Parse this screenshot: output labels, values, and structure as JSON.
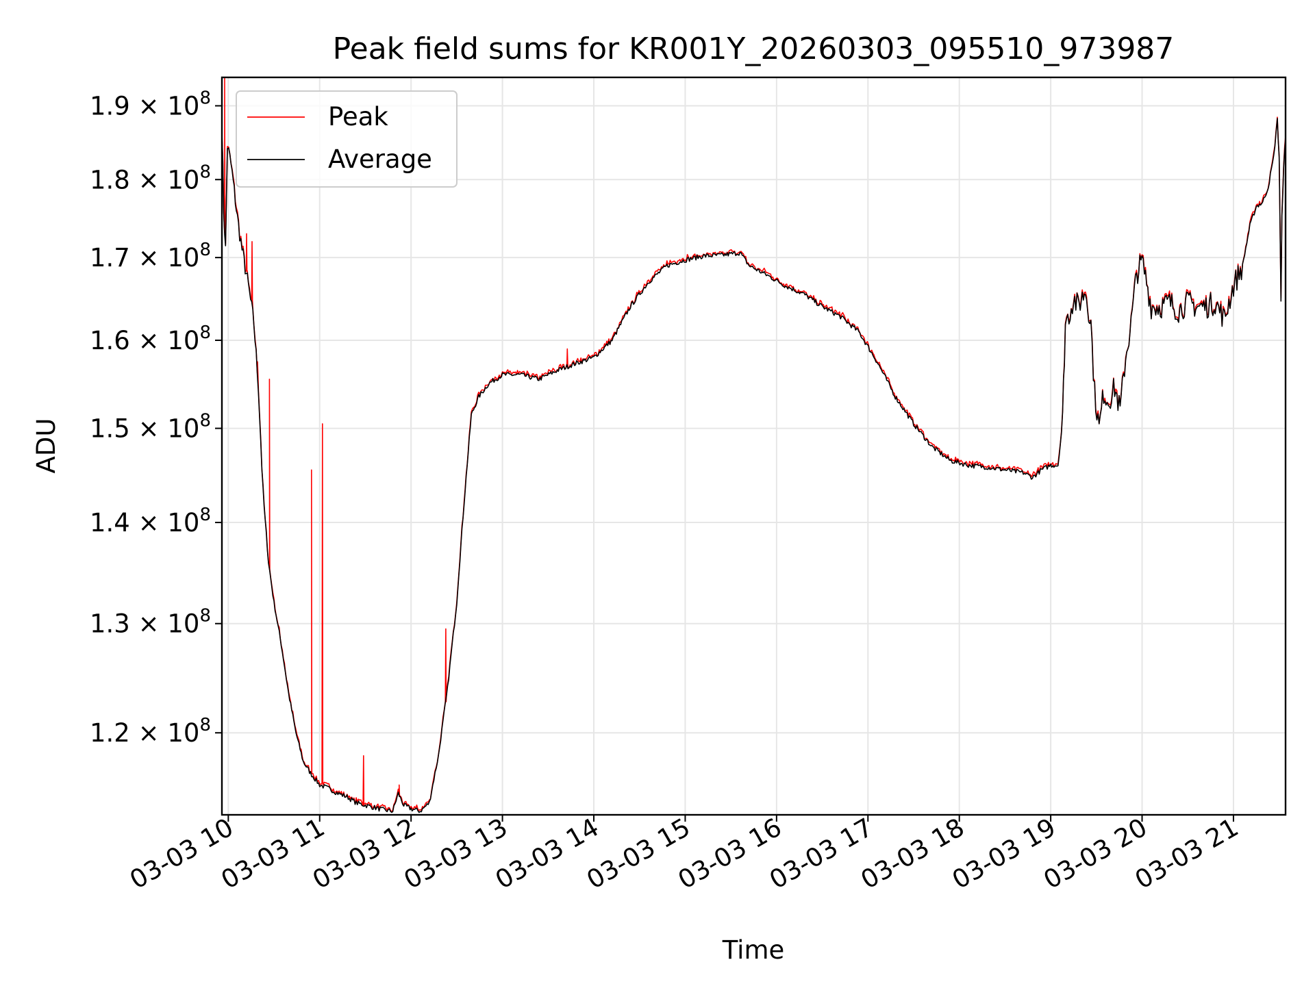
{
  "chart_data": {
    "type": "line",
    "title": "Peak field sums for KR001Y_20260303_095510_973987",
    "xlabel": "Time",
    "ylabel": "ADU",
    "yscale": "log",
    "ylim": [
      113000000,
      194000000
    ],
    "xlim_hours": [
      9.93,
      21.57
    ],
    "grid": true,
    "legend_loc": "upper left",
    "x_ticks": [
      {
        "value": 10,
        "label": "03-03 10"
      },
      {
        "value": 11,
        "label": "03-03 11"
      },
      {
        "value": 12,
        "label": "03-03 12"
      },
      {
        "value": 13,
        "label": "03-03 13"
      },
      {
        "value": 14,
        "label": "03-03 14"
      },
      {
        "value": 15,
        "label": "03-03 15"
      },
      {
        "value": 16,
        "label": "03-03 16"
      },
      {
        "value": 17,
        "label": "03-03 17"
      },
      {
        "value": 18,
        "label": "03-03 18"
      },
      {
        "value": 19,
        "label": "03-03 19"
      },
      {
        "value": 20,
        "label": "03-03 20"
      },
      {
        "value": 21,
        "label": "03-03 21"
      }
    ],
    "y_ticks": [
      {
        "value": 120000000,
        "mantissa": "1.2",
        "exponent": "8"
      },
      {
        "value": 130000000,
        "mantissa": "1.3",
        "exponent": "8"
      },
      {
        "value": 140000000,
        "mantissa": "1.4",
        "exponent": "8"
      },
      {
        "value": 150000000,
        "mantissa": "1.5",
        "exponent": "8"
      },
      {
        "value": 160000000,
        "mantissa": "1.6",
        "exponent": "8"
      },
      {
        "value": 170000000,
        "mantissa": "1.7",
        "exponent": "8"
      },
      {
        "value": 180000000,
        "mantissa": "1.8",
        "exponent": "8"
      },
      {
        "value": 190000000,
        "mantissa": "1.9",
        "exponent": "8"
      }
    ],
    "tick_base": "× 10",
    "series": [
      {
        "name": "Peak",
        "color": "#ff0000",
        "spikes": [
          [
            9.96,
            194000000.0
          ],
          [
            10.2,
            173000000.0
          ],
          [
            10.26,
            172000000.0
          ],
          [
            10.32,
            157500000.0
          ],
          [
            10.45,
            155500000.0
          ],
          [
            10.91,
            145500000.0
          ],
          [
            11.03,
            150500000.0
          ],
          [
            11.48,
            118000000.0
          ],
          [
            11.87,
            115500000.0
          ],
          [
            12.38,
            129500000.0
          ],
          [
            13.71,
            159000000.0
          ]
        ]
      },
      {
        "name": "Average",
        "color": "#000000",
        "points": [
          [
            9.93,
            187000000.0
          ],
          [
            9.95,
            176000000.0
          ],
          [
            9.97,
            171000000.0
          ],
          [
            9.99,
            184500000.0
          ],
          [
            10.03,
            182000000.0
          ],
          [
            10.1,
            175000000.0
          ],
          [
            10.15,
            171000000.0
          ],
          [
            10.22,
            166500000.0
          ],
          [
            10.28,
            162000000.0
          ],
          [
            10.33,
            154500000.0
          ],
          [
            10.38,
            143000000.0
          ],
          [
            10.44,
            136000000.0
          ],
          [
            10.5,
            132000000.0
          ],
          [
            10.58,
            128000000.0
          ],
          [
            10.66,
            123500000.0
          ],
          [
            10.74,
            120000000.0
          ],
          [
            10.82,
            117500000.0
          ],
          [
            10.9,
            116500000.0
          ],
          [
            11.0,
            115500000.0
          ],
          [
            11.1,
            115200000.0
          ],
          [
            11.2,
            114800000.0
          ],
          [
            11.3,
            114500000.0
          ],
          [
            11.4,
            114000000.0
          ],
          [
            11.5,
            113800000.0
          ],
          [
            11.6,
            113600000.0
          ],
          [
            11.7,
            113400000.0
          ],
          [
            11.8,
            113300000.0
          ],
          [
            11.86,
            114800000.0
          ],
          [
            11.92,
            113800000.0
          ],
          [
            12.0,
            113500000.0
          ],
          [
            12.1,
            113300000.0
          ],
          [
            12.2,
            114000000.0
          ],
          [
            12.3,
            118000000.0
          ],
          [
            12.4,
            124000000.0
          ],
          [
            12.5,
            132000000.0
          ],
          [
            12.58,
            142000000.0
          ],
          [
            12.66,
            151500000.0
          ],
          [
            12.74,
            153500000.0
          ],
          [
            12.85,
            155000000.0
          ],
          [
            13.0,
            156000000.0
          ],
          [
            13.2,
            156000000.0
          ],
          [
            13.4,
            155500000.0
          ],
          [
            13.6,
            156500000.0
          ],
          [
            13.8,
            157300000.0
          ],
          [
            14.0,
            158000000.0
          ],
          [
            14.2,
            160000000.0
          ],
          [
            14.4,
            164000000.0
          ],
          [
            14.6,
            167000000.0
          ],
          [
            14.8,
            169000000.0
          ],
          [
            15.0,
            169700000.0
          ],
          [
            15.2,
            170200000.0
          ],
          [
            15.4,
            170300000.0
          ],
          [
            15.6,
            170600000.0
          ],
          [
            15.7,
            169000000.0
          ],
          [
            15.9,
            167800000.0
          ],
          [
            16.1,
            166500000.0
          ],
          [
            16.3,
            165500000.0
          ],
          [
            16.5,
            164000000.0
          ],
          [
            16.7,
            162800000.0
          ],
          [
            16.9,
            161000000.0
          ],
          [
            17.1,
            157500000.0
          ],
          [
            17.3,
            153500000.0
          ],
          [
            17.5,
            150500000.0
          ],
          [
            17.7,
            148000000.0
          ],
          [
            17.9,
            146500000.0
          ],
          [
            18.1,
            146000000.0
          ],
          [
            18.3,
            145800000.0
          ],
          [
            18.5,
            145500000.0
          ],
          [
            18.7,
            145200000.0
          ],
          [
            18.8,
            144700000.0
          ],
          [
            18.9,
            145500000.0
          ],
          [
            19.0,
            146000000.0
          ],
          [
            19.08,
            146000000.0
          ],
          [
            19.13,
            151000000.0
          ],
          [
            19.16,
            162000000.0
          ],
          [
            19.2,
            163000000.0
          ],
          [
            19.25,
            165000000.0
          ],
          [
            19.3,
            164000000.0
          ],
          [
            19.38,
            166000000.0
          ],
          [
            19.44,
            162000000.0
          ],
          [
            19.48,
            154000000.0
          ],
          [
            19.53,
            150000000.0
          ],
          [
            19.58,
            154000000.0
          ],
          [
            19.63,
            153000000.0
          ],
          [
            19.7,
            154500000.0
          ],
          [
            19.76,
            152000000.0
          ],
          [
            19.82,
            158000000.0
          ],
          [
            19.88,
            162000000.0
          ],
          [
            19.94,
            168000000.0
          ],
          [
            20.0,
            169500000.0
          ],
          [
            20.05,
            167000000.0
          ],
          [
            20.1,
            164000000.0
          ],
          [
            20.2,
            164000000.0
          ],
          [
            20.3,
            164500000.0
          ],
          [
            20.4,
            163500000.0
          ],
          [
            20.5,
            164500000.0
          ],
          [
            20.6,
            164000000.0
          ],
          [
            20.7,
            164000000.0
          ],
          [
            20.8,
            164500000.0
          ],
          [
            20.9,
            162500000.0
          ],
          [
            21.0,
            166500000.0
          ],
          [
            21.1,
            169000000.0
          ],
          [
            21.18,
            174000000.0
          ],
          [
            21.25,
            176500000.0
          ],
          [
            21.32,
            177000000.0
          ],
          [
            21.38,
            179000000.0
          ],
          [
            21.44,
            183000000.0
          ],
          [
            21.48,
            188000000.0
          ],
          [
            21.5,
            183000000.0
          ],
          [
            21.52,
            164500000.0
          ],
          [
            21.53,
            175000000.0
          ],
          [
            21.55,
            182000000.0
          ],
          [
            21.57,
            185500000.0
          ]
        ]
      }
    ]
  }
}
